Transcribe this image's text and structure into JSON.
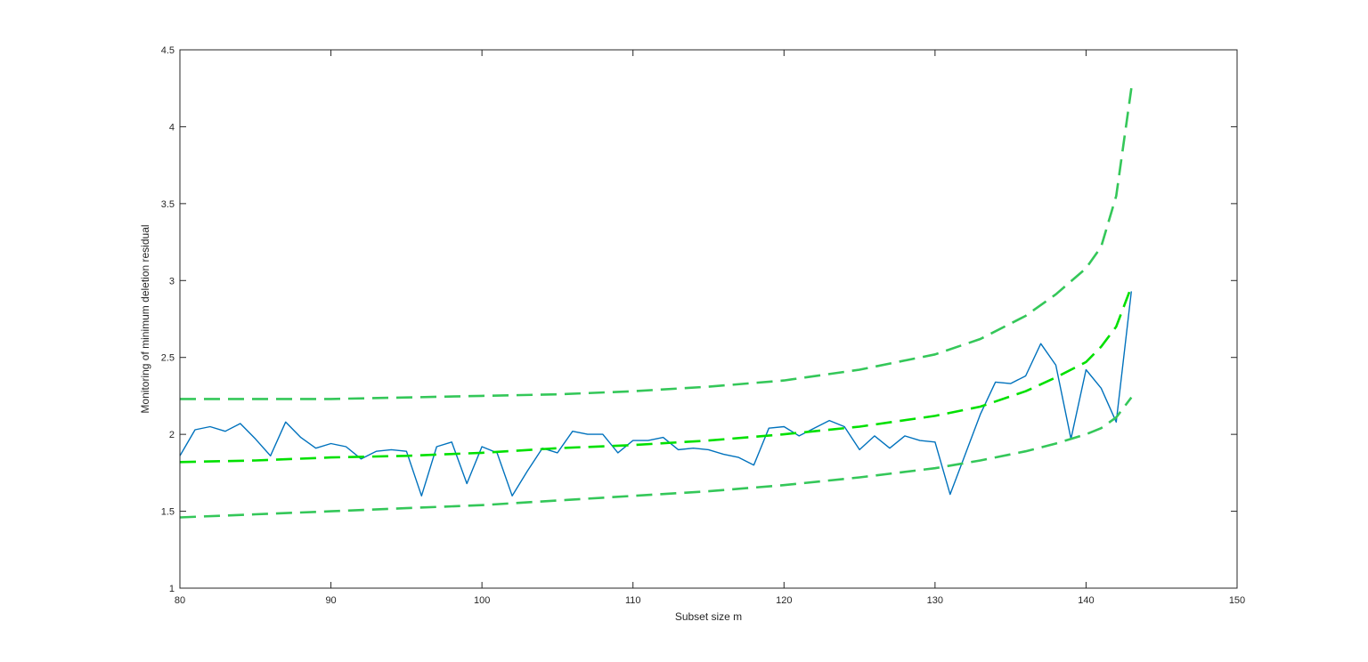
{
  "chart_data": {
    "type": "line",
    "title": "",
    "xlabel": "Subset size m",
    "ylabel": "Monitoring of minimum deletion residual",
    "xlim": [
      80,
      150
    ],
    "ylim": [
      1,
      4.5
    ],
    "xticks": [
      80,
      90,
      100,
      110,
      120,
      130,
      140,
      150
    ],
    "yticks": [
      1,
      1.5,
      2,
      2.5,
      3,
      3.5,
      4,
      4.5
    ],
    "grid": false,
    "legend": "none",
    "series": [
      {
        "style": "solid",
        "color": "#0072BD",
        "x": [
          80,
          81,
          82,
          83,
          84,
          85,
          86,
          87,
          88,
          89,
          90,
          91,
          92,
          93,
          94,
          95,
          96,
          97,
          98,
          99,
          100,
          101,
          102,
          103,
          104,
          105,
          106,
          107,
          108,
          109,
          110,
          111,
          112,
          113,
          114,
          115,
          116,
          117,
          118,
          119,
          120,
          121,
          122,
          123,
          124,
          125,
          126,
          127,
          128,
          129,
          130,
          131,
          132,
          133,
          134,
          135,
          136,
          137,
          138,
          139,
          140,
          141,
          142,
          143
        ],
        "y": [
          1.86,
          2.03,
          2.05,
          2.02,
          2.07,
          1.97,
          1.86,
          2.08,
          1.98,
          1.91,
          1.94,
          1.92,
          1.84,
          1.89,
          1.9,
          1.89,
          1.6,
          1.92,
          1.95,
          1.68,
          1.92,
          1.88,
          1.6,
          1.76,
          1.91,
          1.88,
          2.02,
          2.0,
          2.0,
          1.88,
          1.96,
          1.96,
          1.98,
          1.9,
          1.91,
          1.9,
          1.87,
          1.85,
          1.8,
          2.04,
          2.05,
          1.99,
          2.04,
          2.09,
          2.05,
          1.9,
          1.99,
          1.91,
          1.99,
          1.96,
          1.95,
          1.61,
          1.87,
          2.13,
          2.34,
          2.33,
          2.38,
          2.59,
          2.45,
          1.97,
          2.42,
          2.3,
          2.08,
          2.93
        ]
      },
      {
        "style": "dashed",
        "color": "#34C759",
        "x": [
          80,
          85,
          90,
          95,
          100,
          105,
          110,
          115,
          120,
          125,
          130,
          133,
          136,
          138,
          140,
          141,
          142,
          143
        ],
        "y": [
          2.23,
          2.23,
          2.23,
          2.24,
          2.25,
          2.26,
          2.28,
          2.31,
          2.35,
          2.42,
          2.52,
          2.62,
          2.77,
          2.91,
          3.08,
          3.22,
          3.55,
          4.25
        ]
      },
      {
        "style": "dashed",
        "color": "#00E000",
        "x": [
          80,
          85,
          90,
          95,
          100,
          105,
          110,
          115,
          120,
          125,
          130,
          133,
          136,
          138,
          140,
          141,
          142,
          143
        ],
        "y": [
          1.82,
          1.83,
          1.85,
          1.86,
          1.88,
          1.91,
          1.93,
          1.96,
          2.0,
          2.05,
          2.12,
          2.18,
          2.28,
          2.37,
          2.47,
          2.57,
          2.7,
          2.96
        ]
      },
      {
        "style": "dashed",
        "color": "#34C759",
        "x": [
          80,
          85,
          90,
          95,
          100,
          105,
          110,
          115,
          120,
          125,
          130,
          133,
          136,
          138,
          140,
          141,
          142,
          143
        ],
        "y": [
          1.46,
          1.48,
          1.5,
          1.52,
          1.54,
          1.57,
          1.6,
          1.63,
          1.67,
          1.72,
          1.78,
          1.83,
          1.89,
          1.94,
          2.0,
          2.04,
          2.11,
          2.24
        ]
      }
    ]
  }
}
